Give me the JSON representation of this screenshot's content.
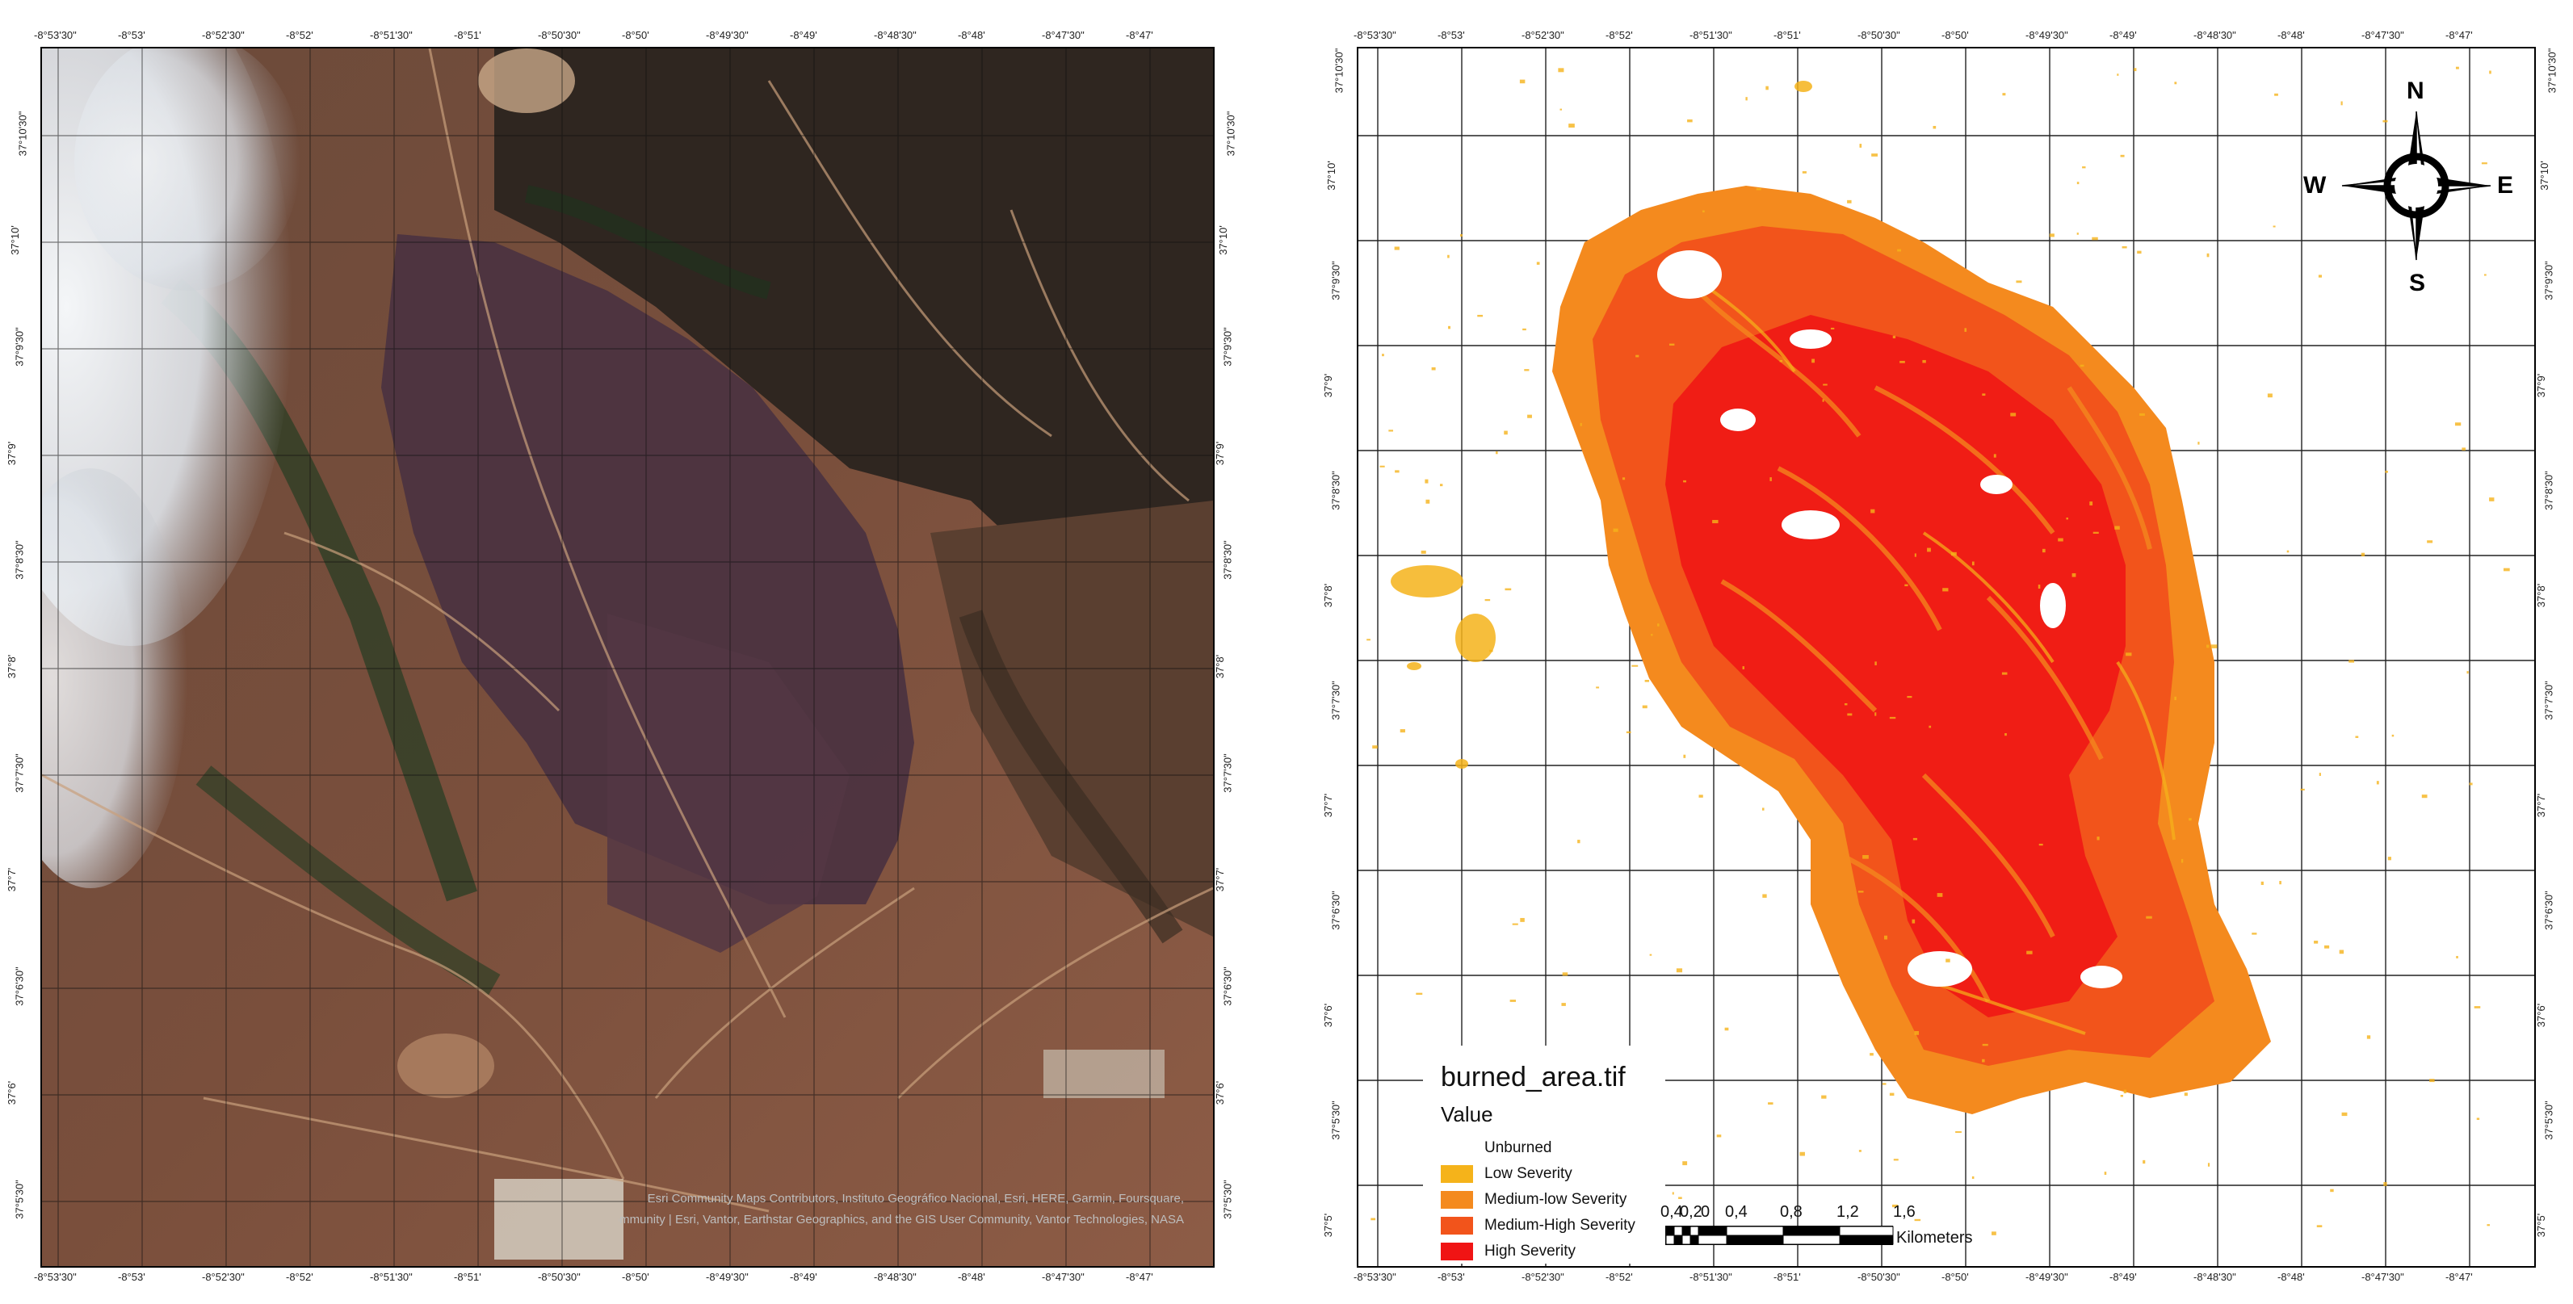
{
  "left_map": {
    "top_ticks": [
      "-8°53'30\"",
      "-8°53'",
      "-8°52'30\"",
      "-8°52'",
      "-8°51'30\"",
      "-8°51'",
      "-8°50'30\"",
      "-8°50'",
      "-8°49'30\"",
      "-8°49'",
      "-8°48'30\"",
      "-8°48'",
      "-8°47'30\"",
      "-8°47'"
    ],
    "bottom_ticks": [
      "-8°53'30\"",
      "-8°53'",
      "-8°52'30\"",
      "-8°52'",
      "-8°51'30\"",
      "-8°51'",
      "-8°50'30\"",
      "-8°50'",
      "-8°49'30\"",
      "-8°49'",
      "-8°48'30\"",
      "-8°48'",
      "-8°47'30\"",
      "-8°47'"
    ],
    "left_ticks": [
      "37°10'30\"",
      "37°10'",
      "37°9'30\"",
      "37°9'",
      "37°8'30\"",
      "37°8'",
      "37°7'30\"",
      "37°7'",
      "37°6'30\"",
      "37°6'",
      "37°5'30\""
    ],
    "right_ticks": [
      "37°10'30\"",
      "37°10'",
      "37°9'30\"",
      "37°9'",
      "37°8'30\"",
      "37°8'",
      "37°7'30\"",
      "37°7'",
      "37°6'30\"",
      "37°6'",
      "37°5'30\""
    ],
    "attribution_line1": "Esri Community Maps Contributors, Instituto Geográfico Nacional, Esri, HERE, Garmin, Foursquare,",
    "attribution_line2": "METI/NASA, USGS, Bureau of Land Management, EPA, NPS, US Census Bureau, USDA, USFWS | Earthstar Geographics | Esri, TomTom, Garmin, FAO, NOAA, USGS, © OpenStreetMap contributors, and the GIS User Community | Esri, Vantor, Earthstar Geographics, and the GIS User Community, Vantor Technologies, NASA",
    "colors": {
      "burn_scar": "#4c3340",
      "soil": "#8a5a44",
      "vegetation": "#2d3a24",
      "cloud": "#e8ecf0"
    }
  },
  "right_map": {
    "top_ticks": [
      "-8°53'30\"",
      "-8°53'",
      "-8°52'30\"",
      "-8°52'",
      "-8°51'30\"",
      "-8°51'",
      "-8°50'30\"",
      "-8°50'",
      "-8°49'30\"",
      "-8°49'",
      "-8°48'30\"",
      "-8°48'",
      "-8°47'30\"",
      "-8°47'"
    ],
    "bottom_ticks": [
      "-8°53'30\"",
      "-8°53'",
      "-8°52'30\"",
      "-8°52'",
      "-8°51'30\"",
      "-8°51'",
      "-8°50'30\"",
      "-8°50'",
      "-8°49'30\"",
      "-8°49'",
      "-8°48'30\"",
      "-8°48'",
      "-8°47'30\"",
      "-8°47'"
    ],
    "left_ticks": [
      "37°10'30\"",
      "37°10'",
      "37°9'30\"",
      "37°9'",
      "37°8'30\"",
      "37°8'",
      "37°7'30\"",
      "37°7'",
      "37°6'30\"",
      "37°6'",
      "37°5'30\"",
      "37°5'"
    ],
    "right_ticks": [
      "37°10'30\"",
      "37°10'",
      "37°9'30\"",
      "37°9'",
      "37°8'30\"",
      "37°8'",
      "37°7'30\"",
      "37°7'",
      "37°6'30\"",
      "37°6'",
      "37°5'30\"",
      "37°5'"
    ],
    "compass": {
      "n": "N",
      "s": "S",
      "e": "E",
      "w": "W"
    },
    "legend": {
      "title": "burned_area.tif",
      "subtitle": "Value",
      "classes": [
        {
          "label": "Unburned",
          "color": "#ffffff"
        },
        {
          "label": "Low Severity",
          "color": "#f5b31a"
        },
        {
          "label": "Medium-low Severity",
          "color": "#f48a1e"
        },
        {
          "label": "Medium-High Severity",
          "color": "#f2541b"
        },
        {
          "label": "High Severity",
          "color": "#f01414"
        }
      ]
    },
    "scale_bar": {
      "labels": [
        "0,4",
        "0,2",
        "0",
        "0,4",
        "0,8",
        "1,2",
        "1,6"
      ],
      "unit": "Kilometers"
    }
  }
}
